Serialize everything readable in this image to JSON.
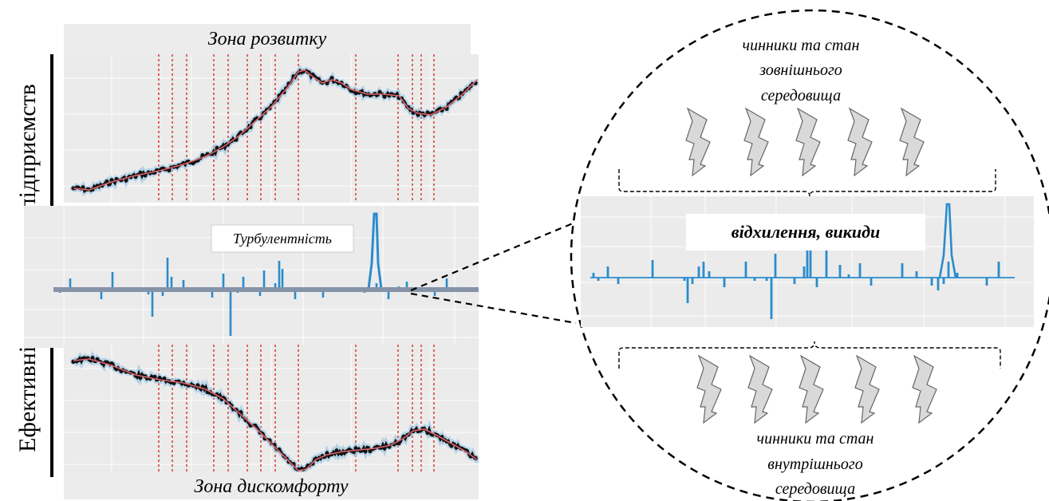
{
  "y_axis_label": "Ефективність розвитку підприємств",
  "top_panel": {
    "title": "Зона розвитку"
  },
  "middle_panel": {
    "label": "Турбулентність"
  },
  "bottom_panel": {
    "title": "Зона дискомфорту"
  },
  "zoom": {
    "deviation_label": "відхилення, викиди",
    "external": {
      "line1": "чинники та стан",
      "line2": "зовнішнього",
      "line3": "середовища"
    },
    "internal": {
      "line1": "чинники та стан",
      "line2": "внутрішнього",
      "line3": "середовища"
    }
  },
  "colors": {
    "panel_bg": "#ebebeb",
    "series": "#2a8ccc",
    "trend": "#e0636b",
    "band": "#9ec9e6",
    "marker_lines": "#d9463f",
    "baseline": "#8593a8",
    "bolt_fill": "#d9d9d9"
  },
  "icons": {
    "bolt": "lightning-bolt-icon"
  }
}
